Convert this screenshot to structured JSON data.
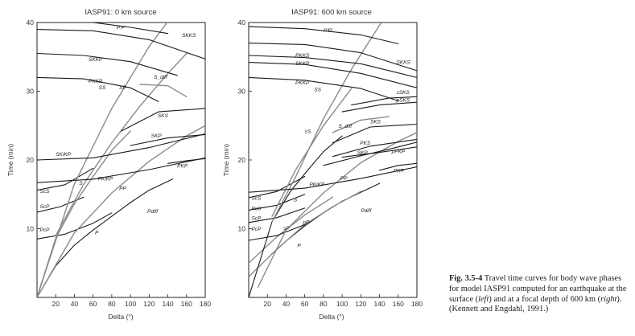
{
  "figure": {
    "caption": {
      "label": "Fig. 3.5-4",
      "part1": "Travel time curves for body wave phases for model IASP91 computed for an earthquake at the surface (",
      "left": "left",
      "part2": ") and at a focal depth of 600 km (",
      "right": "right",
      "part3": "). (Kennett and Engdahl, 1991.)"
    }
  },
  "chart_data": [
    {
      "type": "line",
      "title": "IASP91: 0 km source",
      "xlabel": "Delta (°)",
      "ylabel": "Time (min)",
      "xlim": [
        0,
        180
      ],
      "ylim": [
        0,
        40
      ],
      "xticks": [
        20,
        40,
        60,
        80,
        100,
        120,
        140,
        160,
        180
      ],
      "yticks": [
        10,
        20,
        30,
        40
      ],
      "series": [
        {
          "name": "P",
          "shade": "dark",
          "x": [
            0,
            20,
            40,
            60,
            80,
            100
          ],
          "y": [
            0,
            4.6,
            7.6,
            9.8,
            11.8,
            13.8
          ],
          "lx": 62,
          "ly": 9.2
        },
        {
          "name": "Pdiff",
          "shade": "dark",
          "x": [
            100,
            120,
            145
          ],
          "y": [
            13.8,
            15.6,
            17.2
          ],
          "lx": 118,
          "ly": 12.3
        },
        {
          "name": "PcP",
          "shade": "dark",
          "x": [
            0,
            30,
            60,
            80
          ],
          "y": [
            8.5,
            9.2,
            10.8,
            12.3
          ],
          "lx": 3,
          "ly": 9.6
        },
        {
          "name": "ScP",
          "shade": "dark",
          "x": [
            0,
            25,
            50
          ],
          "y": [
            12.4,
            13.2,
            14.6
          ],
          "lx": 3,
          "ly": 13.0
        },
        {
          "name": "ScS",
          "shade": "dark",
          "x": [
            0,
            30,
            60
          ],
          "y": [
            15.6,
            16.4,
            18.8
          ],
          "lx": 3,
          "ly": 15.2
        },
        {
          "name": "PP",
          "shade": "light",
          "x": [
            0,
            40,
            80,
            120,
            160,
            180
          ],
          "y": [
            0,
            9.4,
            15.2,
            19.8,
            23.5,
            25.0
          ],
          "lx": 88,
          "ly": 15.6
        },
        {
          "name": "SS",
          "shade": "light",
          "x": [
            0,
            40,
            80,
            120,
            150
          ],
          "y": [
            0,
            16.5,
            27.5,
            36.5,
            42.0
          ],
          "lx": 66,
          "ly": 30.3
        },
        {
          "name": "S",
          "shade": "light",
          "x": [
            0,
            20,
            40,
            60,
            80,
            100
          ],
          "y": [
            0,
            8.6,
            13.6,
            17.6,
            21.4,
            24.2
          ],
          "lx": 45,
          "ly": 16.4
        },
        {
          "name": "SP",
          "shade": "light",
          "x": [
            20,
            50,
            80,
            110,
            140,
            160
          ],
          "y": [
            9.0,
            16.5,
            22.5,
            27.8,
            32.6,
            35.5
          ],
          "lx": 88,
          "ly": 30.3
        },
        {
          "name": "PKKP",
          "shade": "dark",
          "x": [
            0,
            50,
            100,
            130
          ],
          "y": [
            32.0,
            31.8,
            30.5,
            28.5
          ],
          "lx": 55,
          "ly": 31.2
        },
        {
          "name": "SKKP",
          "shade": "dark",
          "x": [
            0,
            50,
            100,
            150
          ],
          "y": [
            35.5,
            35.2,
            34.3,
            32.3
          ],
          "lx": 55,
          "ly": 34.4
        },
        {
          "name": "SKKS",
          "shade": "dark",
          "x": [
            0,
            60,
            120,
            180
          ],
          "y": [
            39.0,
            38.8,
            37.5,
            34.7
          ],
          "lx": 155,
          "ly": 37.9
        },
        {
          "name": "P'P'",
          "shade": "dark",
          "x": [
            60,
            100,
            140
          ],
          "y": [
            40.0,
            39.3,
            38.4
          ],
          "lx": 85,
          "ly": 39.0
        },
        {
          "name": "SKiKP",
          "shade": "dark",
          "x": [
            0,
            60,
            120,
            180
          ],
          "y": [
            20.0,
            20.3,
            21.8,
            23.8
          ],
          "lx": 20,
          "ly": 20.6
        },
        {
          "name": "PKiKP",
          "shade": "dark",
          "x": [
            0,
            60,
            120,
            180
          ],
          "y": [
            16.7,
            17.2,
            18.6,
            20.3
          ],
          "lx": 65,
          "ly": 17.0
        },
        {
          "name": "PKP",
          "shade": "dark",
          "x": [
            140,
            160,
            180
          ],
          "y": [
            19.5,
            19.9,
            20.2
          ],
          "lx": 150,
          "ly": 18.9
        },
        {
          "name": "SKP",
          "shade": "dark",
          "x": [
            100,
            140,
            180
          ],
          "y": [
            22.1,
            23.2,
            23.7
          ],
          "lx": 122,
          "ly": 23.3
        },
        {
          "name": "SKS",
          "shade": "dark",
          "x": [
            90,
            130,
            180
          ],
          "y": [
            24.2,
            27.0,
            27.5
          ],
          "lx": 129,
          "ly": 26.2
        },
        {
          "name": "S_diff",
          "shade": "light",
          "x": [
            110,
            140,
            160
          ],
          "y": [
            31.0,
            30.8,
            29.2
          ],
          "lx": 125,
          "ly": 31.8
        }
      ]
    },
    {
      "type": "line",
      "title": "IASP91: 600 km source",
      "xlabel": "Delta (°)",
      "ylabel": "Time (min)",
      "xlim": [
        0,
        180
      ],
      "ylim": [
        0,
        40
      ],
      "xticks": [
        20,
        40,
        60,
        80,
        100,
        120,
        140,
        160,
        180
      ],
      "yticks": [
        10,
        20,
        30,
        40
      ],
      "series": [
        {
          "name": "P",
          "shade": "dark",
          "x": [
            25,
            40,
            60,
            80,
            100
          ],
          "y": [
            6.3,
            8.2,
            10.4,
            12.3,
            14.0
          ],
          "lx": 52,
          "ly": 7.3
        },
        {
          "name": "Pdiff",
          "shade": "dark",
          "x": [
            100,
            120,
            140
          ],
          "y": [
            14.0,
            15.3,
            16.6
          ],
          "lx": 120,
          "ly": 12.4
        },
        {
          "name": "pP",
          "shade": "light",
          "x": [
            0,
            30,
            60,
            90,
            120
          ],
          "y": [
            3.0,
            7.0,
            10.6,
            13.2,
            15.4
          ],
          "lx": 58,
          "ly": 10.7
        },
        {
          "name": "sP",
          "shade": "light",
          "x": [
            0,
            30,
            60,
            90
          ],
          "y": [
            5.0,
            8.8,
            12.0,
            14.6
          ],
          "lx": 37,
          "ly": 9.8
        },
        {
          "name": "PcP",
          "shade": "dark",
          "x": [
            0,
            30,
            60
          ],
          "y": [
            8.3,
            9.0,
            10.6
          ],
          "lx": 3,
          "ly": 9.7
        },
        {
          "name": "ScP",
          "shade": "dark",
          "x": [
            0,
            30,
            60
          ],
          "y": [
            10.9,
            11.6,
            13.0
          ],
          "lx": 3,
          "ly": 11.3
        },
        {
          "name": "ScS",
          "shade": "dark",
          "x": [
            0,
            30,
            60
          ],
          "y": [
            14.5,
            15.4,
            17.6
          ],
          "lx": 3,
          "ly": 14.2
        },
        {
          "name": "PcS",
          "shade": "dark",
          "x": [
            0,
            30,
            60
          ],
          "y": [
            12.7,
            13.4,
            15.0
          ],
          "lx": 3,
          "ly": 12.7
        },
        {
          "name": "S",
          "shade": "dark",
          "x": [
            0,
            25,
            45,
            60,
            80,
            100
          ],
          "y": [
            0,
            11.0,
            15.5,
            18.0,
            21.2,
            23.5
          ],
          "lx": 48,
          "ly": 14.0
        },
        {
          "name": "PP",
          "shade": "light",
          "x": [
            10,
            40,
            80,
            120,
            160,
            180
          ],
          "y": [
            1.5,
            9.8,
            15.2,
            19.6,
            22.7,
            24.0
          ],
          "lx": 98,
          "ly": 17.1
        },
        {
          "name": "SS",
          "shade": "light",
          "x": [
            25,
            50,
            80,
            110,
            140,
            150
          ],
          "y": [
            11.0,
            17.5,
            26.0,
            33.2,
            39.6,
            41.5
          ],
          "lx": 70,
          "ly": 30.0
        },
        {
          "name": "sS",
          "shade": "light",
          "x": [
            25,
            50,
            80,
            110
          ],
          "y": [
            11.8,
            18.5,
            25.0,
            30.4
          ],
          "lx": 60,
          "ly": 23.9
        },
        {
          "name": "S_diff",
          "shade": "light",
          "x": [
            90,
            120,
            150
          ],
          "y": [
            24.0,
            25.8,
            26.3
          ],
          "lx": 96,
          "ly": 24.7
        },
        {
          "name": "pPKP",
          "shade": "dark",
          "x": [
            100,
            140,
            180
          ],
          "y": [
            20.4,
            21.1,
            21.9
          ],
          "lx": 153,
          "ly": 21.0
        },
        {
          "name": "PKP",
          "shade": "dark",
          "x": [
            140,
            160,
            180
          ],
          "y": [
            18.5,
            19.2,
            19.5
          ],
          "lx": 155,
          "ly": 18.2
        },
        {
          "name": "PKiKP",
          "shade": "dark",
          "x": [
            0,
            60,
            120,
            180
          ],
          "y": [
            15.3,
            15.9,
            17.3,
            19.0
          ],
          "lx": 65,
          "ly": 16.2
        },
        {
          "name": "SKP",
          "shade": "dark",
          "x": [
            80,
            120,
            160,
            180
          ],
          "y": [
            19.2,
            20.6,
            21.9,
            22.6
          ],
          "lx": 116,
          "ly": 20.8
        },
        {
          "name": "PKS",
          "shade": "dark",
          "x": [
            90,
            130,
            180
          ],
          "y": [
            20.5,
            22.0,
            23.0
          ],
          "lx": 119,
          "ly": 22.2
        },
        {
          "name": "SKS",
          "shade": "dark",
          "x": [
            90,
            130,
            180
          ],
          "y": [
            22.5,
            24.8,
            25.2
          ],
          "lx": 130,
          "ly": 25.3
        },
        {
          "name": "sSKS",
          "shade": "dark",
          "x": [
            110,
            150,
            180
          ],
          "y": [
            28.0,
            29.0,
            29.2
          ],
          "lx": 158,
          "ly": 29.6
        },
        {
          "name": "pSKS",
          "shade": "dark",
          "x": [
            100,
            140,
            180
          ],
          "y": [
            27.0,
            28.0,
            28.4
          ],
          "lx": 158,
          "ly": 28.5
        },
        {
          "name": "PKKP",
          "shade": "dark",
          "x": [
            0,
            60,
            120,
            160
          ],
          "y": [
            32.0,
            31.6,
            30.4,
            28.6
          ],
          "lx": 50,
          "ly": 31.0
        },
        {
          "name": "SKKP",
          "shade": "dark",
          "x": [
            0,
            60,
            120,
            180
          ],
          "y": [
            34.2,
            33.9,
            32.6,
            30.5
          ],
          "lx": 50,
          "ly": 33.8
        },
        {
          "name": "PKKS",
          "shade": "dark",
          "x": [
            0,
            60,
            120,
            180
          ],
          "y": [
            35.2,
            34.9,
            34.0,
            32.0
          ],
          "lx": 50,
          "ly": 35.0
        },
        {
          "name": "SKKS",
          "shade": "dark",
          "x": [
            0,
            60,
            120,
            180
          ],
          "y": [
            37.0,
            36.8,
            35.6,
            33.0
          ],
          "lx": 158,
          "ly": 34.0
        },
        {
          "name": "P'P'",
          "shade": "dark",
          "x": [
            0,
            60,
            120,
            160
          ],
          "y": [
            39.4,
            39.1,
            38.2,
            36.9
          ],
          "lx": 80,
          "ly": 38.6
        }
      ]
    }
  ]
}
